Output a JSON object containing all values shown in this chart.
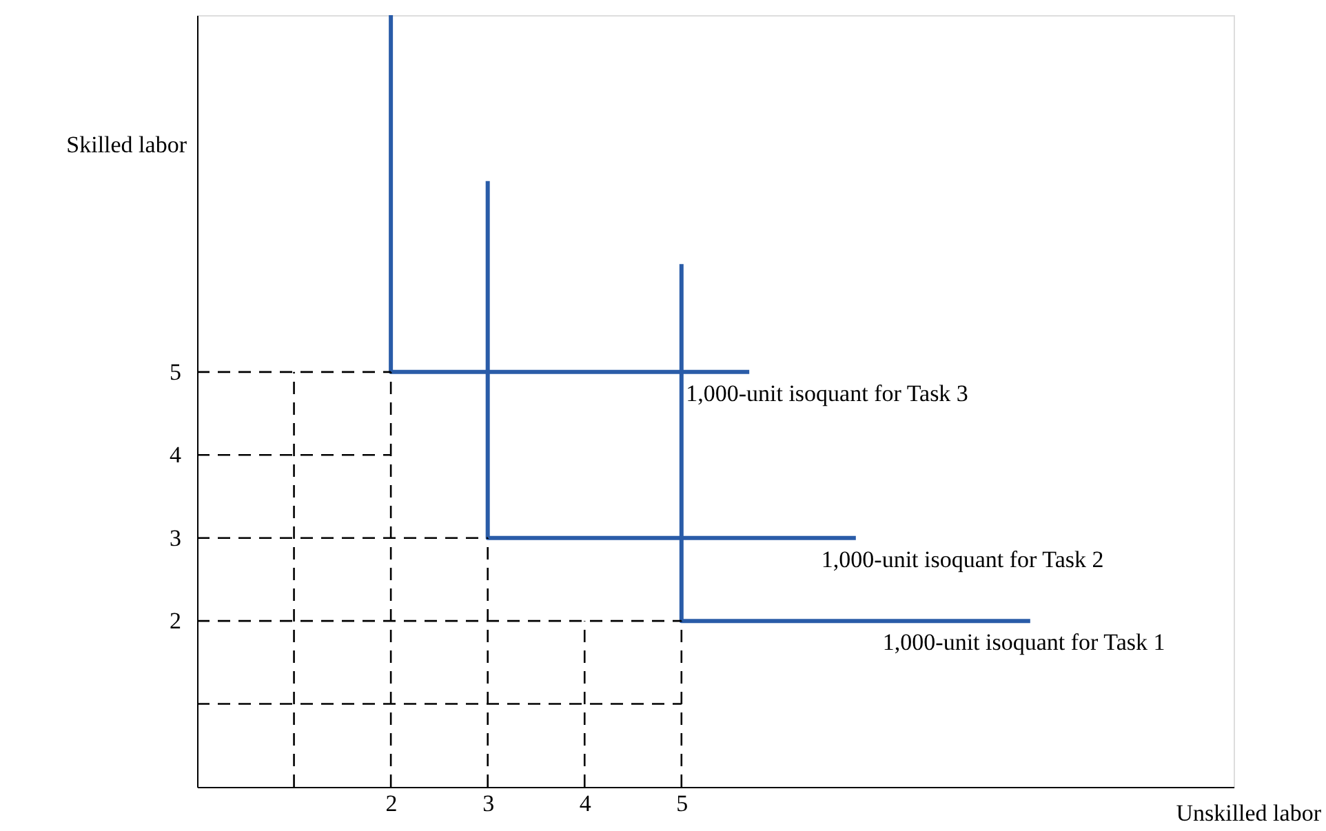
{
  "chart_data": {
    "type": "line",
    "xlabel": "Unskilled labor",
    "ylabel": "Skilled labor",
    "xlim": [
      0,
      10.7
    ],
    "ylim": [
      0,
      9.3
    ],
    "xticks": [
      2,
      3,
      4,
      5
    ],
    "yticks": [
      2,
      3,
      4,
      5
    ],
    "grid": false,
    "series": [
      {
        "color": "#2a5ca8",
        "line_style": "solid",
        "x": [
          2,
          2,
          5.7
        ],
        "values": [
          9.3,
          5,
          5
        ]
      },
      {
        "color": "#2a5ca8",
        "line_style": "solid",
        "x": [
          3,
          3,
          6.8
        ],
        "values": [
          7.3,
          3,
          3
        ]
      },
      {
        "color": "#2a5ca8",
        "line_style": "solid",
        "x": [
          5,
          5,
          8.6
        ],
        "values": [
          6.3,
          2,
          2
        ]
      },
      {
        "color": "#000000",
        "line_style": "dashed",
        "x": [
          0,
          2
        ],
        "values": [
          5,
          5
        ]
      },
      {
        "color": "#000000",
        "line_style": "dashed",
        "x": [
          0,
          2
        ],
        "values": [
          4,
          4
        ]
      },
      {
        "color": "#000000",
        "line_style": "dashed",
        "x": [
          0,
          3
        ],
        "values": [
          3,
          3
        ]
      },
      {
        "color": "#000000",
        "line_style": "dashed",
        "x": [
          0,
          5
        ],
        "values": [
          2,
          2
        ]
      },
      {
        "color": "#000000",
        "line_style": "dashed",
        "x": [
          0,
          5
        ],
        "values": [
          1,
          1
        ]
      },
      {
        "color": "#000000",
        "line_style": "dashed",
        "x": [
          1,
          1
        ],
        "values": [
          0,
          5
        ]
      },
      {
        "color": "#000000",
        "line_style": "dashed",
        "x": [
          2,
          2
        ],
        "values": [
          0,
          5
        ]
      },
      {
        "color": "#000000",
        "line_style": "dashed",
        "x": [
          3,
          3
        ],
        "values": [
          0,
          3
        ]
      },
      {
        "color": "#000000",
        "line_style": "dashed",
        "x": [
          4,
          4
        ],
        "values": [
          0,
          2
        ]
      },
      {
        "color": "#000000",
        "line_style": "dashed",
        "x": [
          5,
          5
        ],
        "values": [
          0,
          2
        ]
      }
    ],
    "annotations": [
      {
        "text": "1,000-unit isoquant for Task 3",
        "x": 5.7,
        "y": 5
      },
      {
        "text": "1,000-unit isoquant for Task 2",
        "x": 6.8,
        "y": 3
      },
      {
        "text": "1,000-unit isoquant for Task 1",
        "x": 8.6,
        "y": 2
      }
    ]
  }
}
